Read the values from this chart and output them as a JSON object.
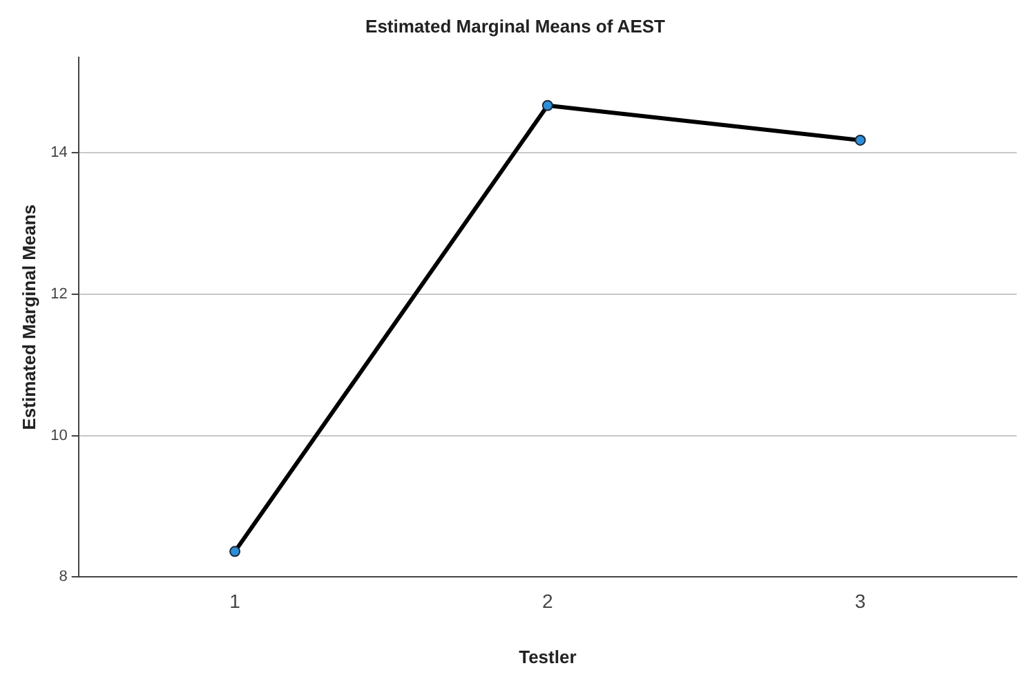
{
  "chart_data": {
    "type": "line",
    "title": "Estimated Marginal Means of AEST",
    "xlabel": "Testler",
    "ylabel": "Estimated Marginal Means",
    "categories": [
      "1",
      "2",
      "3"
    ],
    "series": [
      {
        "color": "#000000",
        "values": [
          8.36,
          14.67,
          14.18
        ]
      }
    ],
    "ylim": [
      8,
      15.35
    ],
    "yticks": [
      8,
      10,
      12,
      14
    ],
    "grid": "y",
    "legend": false,
    "marker": "circle",
    "line_style": "solid"
  }
}
